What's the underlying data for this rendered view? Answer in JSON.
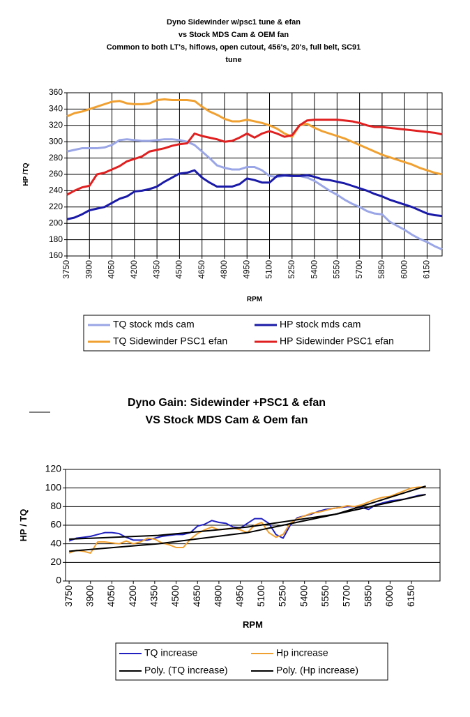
{
  "chart_data": [
    {
      "type": "line",
      "title": [
        "Dyno Sidewinder w/psc1 tune & efan",
        "vs Stock MDS Cam & OEM fan",
        "Common to both  LT's, hiflows, open cutout, 456's, 20's, full belt, SC91",
        "tune"
      ],
      "x_label": "RPM",
      "y_label": "HP /TQ",
      "x": [
        3750,
        3800,
        3850,
        3900,
        3950,
        4000,
        4050,
        4100,
        4150,
        4200,
        4250,
        4300,
        4350,
        4400,
        4450,
        4500,
        4550,
        4600,
        4650,
        4700,
        4750,
        4800,
        4850,
        4900,
        4950,
        5000,
        5050,
        5100,
        5150,
        5200,
        5250,
        5300,
        5350,
        5400,
        5450,
        5500,
        5550,
        5600,
        5650,
        5700,
        5750,
        5800,
        5850,
        5900,
        5950,
        6000,
        6050,
        6100,
        6150,
        6200,
        6250
      ],
      "series": [
        {
          "name": "TQ stock mds cam",
          "color": "#9aa6e6",
          "values": [
            288,
            290,
            292,
            292,
            292,
            293,
            296,
            302,
            303,
            302,
            301,
            301,
            302,
            303,
            303,
            302,
            300,
            296,
            288,
            280,
            271,
            268,
            266,
            266,
            269,
            269,
            265,
            258,
            257,
            258,
            258,
            258,
            256,
            252,
            246,
            240,
            235,
            229,
            224,
            220,
            215,
            212,
            211,
            202,
            197,
            192,
            186,
            181,
            177,
            172,
            168
          ]
        },
        {
          "name": "HP stock mds cam",
          "color": "#1a1aa8",
          "values": [
            205,
            207,
            211,
            216,
            218,
            220,
            225,
            230,
            233,
            239,
            240,
            242,
            245,
            251,
            256,
            261,
            262,
            265,
            256,
            250,
            245,
            245,
            245,
            248,
            255,
            253,
            250,
            250,
            258,
            259,
            258,
            258,
            259,
            257,
            254,
            253,
            251,
            249,
            246,
            243,
            240,
            236,
            233,
            229,
            226,
            223,
            220,
            216,
            212,
            210,
            209
          ]
        },
        {
          "name": "TQ Sidewinder PSC1 efan",
          "color": "#f0a030",
          "values": [
            331,
            335,
            337,
            340,
            343,
            346,
            349,
            350,
            347,
            346,
            346,
            347,
            351,
            352,
            351,
            351,
            351,
            350,
            343,
            337,
            333,
            328,
            325,
            325,
            327,
            325,
            323,
            320,
            316,
            310,
            306,
            320,
            322,
            317,
            313,
            310,
            307,
            304,
            300,
            296,
            292,
            288,
            284,
            281,
            278,
            275,
            272,
            268,
            265,
            262,
            260
          ]
        },
        {
          "name": "HP Sidewinder PSC1 efan",
          "color": "#e02020",
          "values": [
            235,
            240,
            244,
            246,
            260,
            262,
            266,
            270,
            276,
            279,
            282,
            288,
            290,
            292,
            295,
            297,
            298,
            310,
            307,
            305,
            303,
            300,
            301,
            305,
            310,
            305,
            310,
            313,
            310,
            306,
            308,
            320,
            326,
            327,
            327,
            327,
            327,
            326,
            325,
            323,
            320,
            318,
            318,
            317,
            316,
            315,
            314,
            313,
            312,
            311,
            309
          ]
        }
      ],
      "xlim": [
        3750,
        6250
      ],
      "xticks": [
        3750,
        3900,
        4050,
        4200,
        4350,
        4500,
        4650,
        4800,
        4950,
        5100,
        5250,
        5400,
        5550,
        5700,
        5850,
        6000,
        6150
      ],
      "ylim": [
        160,
        360
      ],
      "yticks": [
        160,
        180,
        200,
        220,
        240,
        260,
        280,
        300,
        320,
        340,
        360
      ],
      "grid": true
    },
    {
      "type": "line",
      "title": [
        "Dyno Gain: Sidewinder +PSC1 & efan",
        "VS Stock MDS Cam & Oem fan"
      ],
      "x_label": "RPM",
      "y_label": "HP / TQ",
      "x": [
        3750,
        3800,
        3850,
        3900,
        3950,
        4000,
        4050,
        4100,
        4150,
        4200,
        4250,
        4300,
        4350,
        4400,
        4450,
        4500,
        4550,
        4600,
        4650,
        4700,
        4750,
        4800,
        4850,
        4900,
        4950,
        5000,
        5050,
        5100,
        5150,
        5200,
        5250,
        5300,
        5350,
        5400,
        5450,
        5500,
        5550,
        5600,
        5650,
        5700,
        5750,
        5800,
        5850,
        5900,
        5950,
        6000,
        6050,
        6100,
        6150,
        6200,
        6250
      ],
      "series": [
        {
          "name": "TQ increase",
          "color": "#2020c0",
          "values": [
            43,
            46,
            47,
            48,
            50,
            52,
            52,
            51,
            47,
            44,
            44,
            44,
            46,
            48,
            49,
            50,
            50,
            52,
            59,
            61,
            65,
            63,
            62,
            58,
            57,
            62,
            67,
            67,
            62,
            50,
            46,
            60,
            68,
            70,
            72,
            75,
            77,
            78,
            79,
            80,
            80,
            79,
            77,
            82,
            84,
            86,
            87,
            88,
            90,
            92,
            93
          ]
        },
        {
          "name": "Hp increase",
          "color": "#f0a030",
          "values": [
            30,
            33,
            32,
            30,
            42,
            42,
            41,
            40,
            43,
            40,
            42,
            46,
            45,
            41,
            39,
            36,
            36,
            45,
            51,
            55,
            58,
            55,
            56,
            57,
            55,
            52,
            60,
            63,
            52,
            47,
            50,
            62,
            67,
            70,
            73,
            74,
            76,
            78,
            79,
            81,
            80,
            82,
            85,
            88,
            90,
            91,
            94,
            97,
            100,
            101,
            101
          ]
        },
        {
          "name": "Poly. (TQ increase)",
          "color": "#000000",
          "x": [
            3750,
            4375,
            5000,
            5625,
            6250
          ],
          "values": [
            45,
            49,
            58,
            72,
            93
          ]
        },
        {
          "name": "Poly. (Hp increase)",
          "color": "#000000",
          "x": [
            3750,
            4375,
            5000,
            5625,
            6250
          ],
          "values": [
            32,
            40,
            52,
            72,
            102
          ]
        }
      ],
      "xlim": [
        3725,
        6350
      ],
      "xticks": [
        3750,
        3900,
        4050,
        4200,
        4350,
        4500,
        4650,
        4800,
        4950,
        5100,
        5250,
        5400,
        5550,
        5700,
        5850,
        6000,
        6150
      ],
      "ylim": [
        0,
        120
      ],
      "yticks": [
        0,
        20,
        40,
        60,
        80,
        100,
        120
      ],
      "grid": true
    }
  ]
}
